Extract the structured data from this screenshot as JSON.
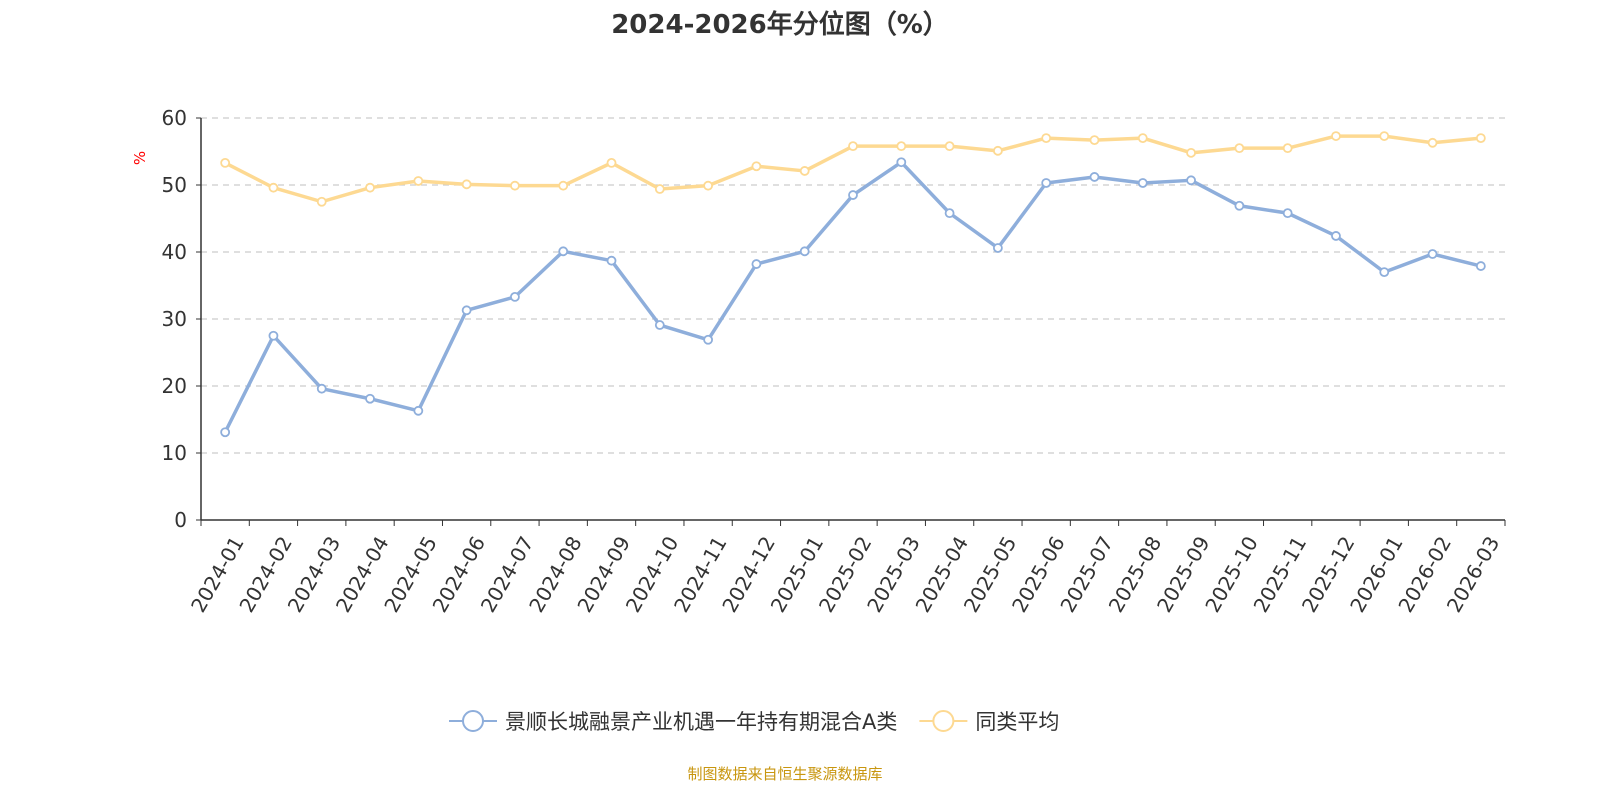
{
  "title": "2024-2026年分位图（%）",
  "source": "制图数据来自恒生聚源数据库",
  "chart_data": {
    "type": "line",
    "title": "2024-2026年分位图（%）",
    "ylabel": "%",
    "ylim": [
      0,
      60
    ],
    "yticks": [
      0,
      10,
      20,
      30,
      40,
      50,
      60
    ],
    "grid": true,
    "legend": "bottom",
    "categories": [
      "2024-01",
      "2024-02",
      "2024-03",
      "2024-04",
      "2024-05",
      "2024-06",
      "2024-07",
      "2024-08",
      "2024-09",
      "2024-10",
      "2024-11",
      "2024-12",
      "2025-01",
      "2025-02",
      "2025-03",
      "2025-04",
      "2025-05",
      "2025-06",
      "2025-07",
      "2025-08",
      "2025-09",
      "2025-10",
      "2025-11",
      "2025-12",
      "2026-01",
      "2026-02",
      "2026-03"
    ],
    "series": [
      {
        "name": "景顺长城融景产业机遇一年持有期混合A类",
        "color": "#8eaedb",
        "values": [
          13.1,
          27.5,
          19.6,
          18.1,
          16.3,
          31.3,
          33.3,
          40.1,
          38.7,
          29.1,
          26.9,
          38.2,
          40.1,
          48.5,
          53.4,
          45.8,
          40.6,
          50.3,
          51.2,
          50.3,
          50.7,
          46.9,
          45.8,
          42.4,
          37.0,
          39.7,
          37.9
        ]
      },
      {
        "name": "同类平均",
        "color": "#fdd992",
        "values": [
          53.3,
          49.6,
          47.5,
          49.6,
          50.6,
          50.1,
          49.9,
          49.9,
          53.3,
          49.4,
          49.9,
          52.8,
          52.1,
          55.8,
          55.8,
          55.8,
          55.1,
          57.0,
          56.7,
          57.0,
          54.8,
          55.5,
          55.5,
          57.3,
          57.3,
          56.3,
          57.0
        ]
      }
    ]
  }
}
